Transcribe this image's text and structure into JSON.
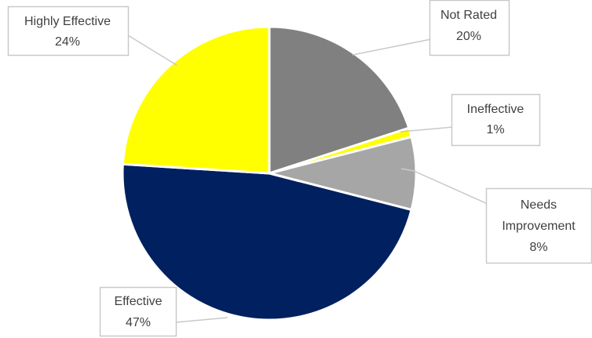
{
  "chart_data": {
    "type": "pie",
    "title": "",
    "start_angle_deg": 0,
    "direction": "clockwise",
    "slices": [
      {
        "label": "Not Rated",
        "value": 20,
        "value_label": "20%",
        "color": "#808080"
      },
      {
        "label": "Ineffective",
        "value": 1,
        "value_label": "1%",
        "color": "#FFFF00"
      },
      {
        "label": "Needs Improvement",
        "value": 8,
        "value_label": "8%",
        "color": "#A6A6A6"
      },
      {
        "label": "Effective",
        "value": 47,
        "value_label": "47%",
        "color": "#002060"
      },
      {
        "label": "Highly Effective",
        "value": 24,
        "value_label": "24%",
        "color": "#FFFF00"
      }
    ],
    "legend": "none",
    "data_labels": "callouts"
  }
}
